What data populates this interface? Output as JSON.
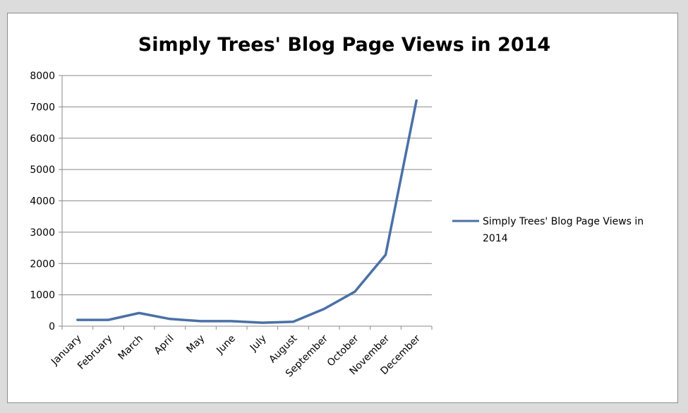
{
  "chart_data": {
    "type": "line",
    "title": "Simply Trees' Blog Page Views in 2014",
    "xlabel": "",
    "ylabel": "",
    "categories": [
      "January",
      "February",
      "March",
      "April",
      "May",
      "June",
      "July",
      "August",
      "September",
      "October",
      "November",
      "December"
    ],
    "series": [
      {
        "name": "Simply Trees' Blog Page Views in 2014",
        "values": [
          200,
          200,
          420,
          230,
          160,
          160,
          110,
          140,
          550,
          1100,
          2280,
          7200
        ],
        "color": "#4a70a6"
      }
    ],
    "ylim": [
      0,
      8000
    ],
    "yticks": [
      "0",
      "1000",
      "2000",
      "3000",
      "4000",
      "5000",
      "6000",
      "7000",
      "8000"
    ],
    "grid": true,
    "legend": "right",
    "legend_lines": [
      "Simply Trees' Blog Page Views in",
      "2014"
    ]
  }
}
